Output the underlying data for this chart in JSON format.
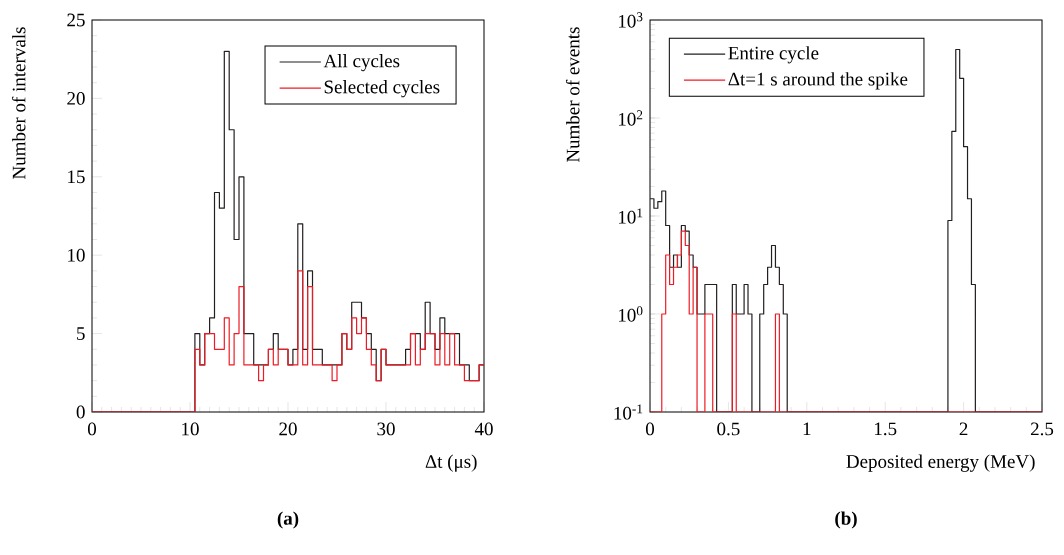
{
  "chart_data": [
    {
      "type": "histogram",
      "xlabel": "Δt (μs)",
      "ylabel": "Number of intervals",
      "xlim": [
        0,
        40
      ],
      "ylim": [
        0,
        25
      ],
      "xticks": [
        0,
        10,
        20,
        30,
        40
      ],
      "yticks": [
        0,
        5,
        10,
        15,
        20,
        25
      ],
      "legend": "top right",
      "annotations": [
        "(a)"
      ],
      "bins": [
        0,
        0.5,
        1,
        1.5,
        2,
        2.5,
        3,
        3.5,
        4,
        4.5,
        5,
        5.5,
        6,
        6.5,
        7,
        7.5,
        8,
        8.5,
        9,
        9.5,
        10,
        10.5,
        11,
        11.5,
        12,
        12.5,
        13,
        13.5,
        14,
        14.5,
        15,
        15.5,
        16,
        16.5,
        17,
        17.5,
        18,
        18.5,
        19,
        19.5,
        20,
        20.5,
        21,
        21.5,
        22,
        22.5,
        23,
        23.5,
        24,
        24.5,
        25,
        25.5,
        26,
        26.5,
        27,
        27.5,
        28,
        28.5,
        29,
        29.5,
        30,
        30.5,
        31,
        31.5,
        32,
        32.5,
        33,
        33.5,
        34,
        34.5,
        35,
        35.5,
        36,
        36.5,
        37,
        37.5,
        38,
        38.5,
        39,
        39.5,
        40
      ],
      "series": [
        {
          "name": "All cycles",
          "color": "#231f20",
          "values": [
            0,
            0,
            0,
            0,
            0,
            0,
            0,
            0,
            0,
            0,
            0,
            0,
            0,
            0,
            0,
            0,
            0,
            0,
            0,
            0,
            0,
            5,
            3,
            5,
            6,
            14,
            13,
            23,
            18,
            11,
            15,
            5,
            5,
            3,
            3,
            3,
            4,
            5,
            4,
            4,
            3,
            4,
            12,
            4,
            9,
            4,
            4,
            3,
            3,
            3,
            3,
            5,
            4,
            7,
            7,
            6,
            5,
            4,
            2,
            4,
            3,
            3,
            3,
            3,
            4,
            5,
            5,
            4,
            7,
            5,
            4,
            6,
            5,
            5,
            5,
            3,
            3,
            2,
            2,
            3
          ]
        },
        {
          "name": "Selected cycles",
          "color": "#ed1c24",
          "values": [
            0,
            0,
            0,
            0,
            0,
            0,
            0,
            0,
            0,
            0,
            0,
            0,
            0,
            0,
            0,
            0,
            0,
            0,
            0,
            0,
            0,
            4,
            3,
            5,
            5,
            4,
            4,
            6,
            3,
            5,
            8,
            3,
            3,
            3,
            2,
            3,
            4,
            3,
            4,
            4,
            3,
            3,
            9,
            3,
            8,
            3,
            3,
            3,
            3,
            2,
            3,
            5,
            4,
            6,
            5,
            6,
            4,
            3,
            2,
            4,
            3,
            3,
            3,
            3,
            3,
            5,
            3,
            4,
            5,
            5,
            3,
            5,
            3,
            5,
            3,
            3,
            2,
            2,
            2,
            3
          ]
        }
      ]
    },
    {
      "type": "histogram",
      "xlabel": "Deposited energy (MeV)",
      "ylabel": "Number of events",
      "log": "y",
      "xlim": [
        0,
        2.5
      ],
      "ylim": [
        0.1,
        1000
      ],
      "xticks": [
        0,
        0.5,
        1,
        1.5,
        2,
        2.5
      ],
      "yticks": [
        {
          "value": 0.1,
          "label": "10$^{-1}$"
        },
        {
          "value": 1,
          "label": "10$^{0}$"
        },
        {
          "value": 10,
          "label": "10$^{1}$"
        },
        {
          "value": 100,
          "label": "10$^{2}$"
        },
        {
          "value": 1000,
          "label": "10$^{3}$"
        }
      ],
      "legend": "top left",
      "annotations": [
        "(b)"
      ],
      "bins": [
        0,
        0.025,
        0.05,
        0.075,
        0.1,
        0.125,
        0.15,
        0.175,
        0.2,
        0.225,
        0.25,
        0.275,
        0.3,
        0.325,
        0.35,
        0.375,
        0.4,
        0.425,
        0.45,
        0.475,
        0.5,
        0.525,
        0.55,
        0.575,
        0.6,
        0.625,
        0.65,
        0.675,
        0.7,
        0.725,
        0.75,
        0.775,
        0.8,
        0.825,
        0.85,
        0.875,
        0.9,
        0.925,
        0.95,
        0.975,
        1,
        1.025,
        1.05,
        1.075,
        1.1,
        1.125,
        1.15,
        1.175,
        1.2,
        1.225,
        1.25,
        1.275,
        1.3,
        1.325,
        1.35,
        1.375,
        1.4,
        1.425,
        1.45,
        1.475,
        1.5,
        1.525,
        1.55,
        1.575,
        1.6,
        1.625,
        1.65,
        1.675,
        1.7,
        1.725,
        1.75,
        1.775,
        1.8,
        1.825,
        1.85,
        1.875,
        1.9,
        1.925,
        1.95,
        1.975,
        2,
        2.025,
        2.05,
        2.075,
        2.1,
        2.125,
        2.15,
        2.175,
        2.2,
        2.225,
        2.25,
        2.275,
        2.3,
        2.325,
        2.35,
        2.375,
        2.4,
        2.425,
        2.45,
        2.475,
        2.5
      ],
      "series": [
        {
          "name": "Entire cycle",
          "color": "#231f20",
          "values": [
            15,
            12,
            14,
            18,
            8,
            3,
            4,
            3,
            8,
            7,
            4,
            3,
            1,
            1,
            2,
            2,
            2,
            null,
            null,
            null,
            null,
            2,
            1,
            1,
            2,
            1,
            null,
            null,
            1,
            2,
            3,
            5,
            3,
            2,
            1,
            null,
            null,
            null,
            null,
            null,
            null,
            null,
            null,
            null,
            null,
            null,
            null,
            null,
            null,
            null,
            null,
            null,
            null,
            null,
            null,
            null,
            null,
            null,
            null,
            null,
            null,
            null,
            null,
            null,
            null,
            null,
            null,
            null,
            null,
            null,
            null,
            null,
            null,
            null,
            null,
            null,
            9,
            73,
            500,
            254,
            51,
            15,
            2,
            null,
            null,
            null,
            null,
            null,
            null,
            null,
            null,
            null,
            null,
            null,
            null,
            null,
            null,
            null,
            null,
            null
          ]
        },
        {
          "name": "Δt=1 s around the spike",
          "color": "#ed1c24",
          "values": [
            null,
            null,
            null,
            1,
            4,
            2,
            3,
            4,
            7,
            5,
            1,
            3,
            null,
            null,
            1,
            1,
            null,
            null,
            null,
            null,
            null,
            1,
            null,
            null,
            null,
            null,
            null,
            null,
            null,
            null,
            null,
            null,
            1,
            null,
            null,
            null,
            null,
            null,
            null,
            null,
            null,
            null,
            null,
            null,
            null,
            null,
            null,
            null,
            null,
            null,
            null,
            null,
            null,
            null,
            null,
            null,
            null,
            null,
            null,
            null,
            null,
            null,
            null,
            null,
            null,
            null,
            null,
            null,
            null,
            null,
            null,
            null,
            null,
            null,
            null,
            null,
            null,
            null,
            null,
            null,
            null,
            null,
            null,
            null,
            null,
            null,
            null,
            null,
            null,
            null,
            null,
            null,
            null,
            null,
            null,
            null,
            null,
            null,
            null,
            null
          ]
        }
      ]
    }
  ]
}
